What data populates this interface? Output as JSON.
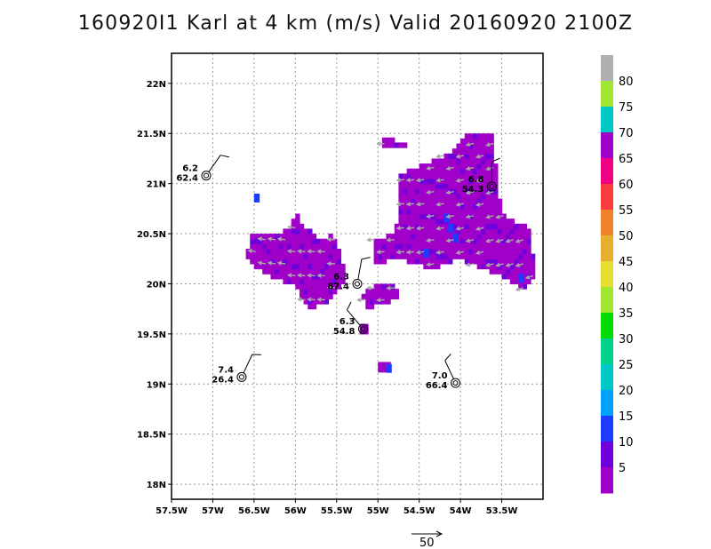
{
  "title": "160920I1 Karl at 4 km (m/s) Valid 20160920 2100Z",
  "map": {
    "lon_min": -57.5,
    "lon_max": -53.0,
    "lat_min": 17.85,
    "lat_max": 22.3,
    "x_ticks": [
      {
        "value": -57.5,
        "label": "57.5W"
      },
      {
        "value": -57.0,
        "label": "57W"
      },
      {
        "value": -56.5,
        "label": "56.5W"
      },
      {
        "value": -56.0,
        "label": "56W"
      },
      {
        "value": -55.5,
        "label": "55.5W"
      },
      {
        "value": -55.0,
        "label": "55W"
      },
      {
        "value": -54.5,
        "label": "54.5W"
      },
      {
        "value": -54.0,
        "label": "54W"
      },
      {
        "value": -53.5,
        "label": "53.5W"
      }
    ],
    "y_ticks": [
      {
        "value": 18.0,
        "label": "18N"
      },
      {
        "value": 18.5,
        "label": "18.5N"
      },
      {
        "value": 19.0,
        "label": "19N"
      },
      {
        "value": 19.5,
        "label": "19.5N"
      },
      {
        "value": 20.0,
        "label": "20N"
      },
      {
        "value": 20.5,
        "label": "20.5N"
      },
      {
        "value": 21.0,
        "label": "21N"
      },
      {
        "value": 21.5,
        "label": "21.5N"
      },
      {
        "value": 22.0,
        "label": "22N"
      }
    ],
    "gridlines": true,
    "background": "#ffffff"
  },
  "colorbar": {
    "labels": [
      "5",
      "10",
      "15",
      "20",
      "25",
      "30",
      "35",
      "40",
      "45",
      "50",
      "55",
      "60",
      "65",
      "70",
      "75",
      "80"
    ],
    "colors": [
      "#a000c8",
      "#6e00dc",
      "#1e3cff",
      "#00a0ff",
      "#00c8c8",
      "#00d28c",
      "#00dc00",
      "#a0e632",
      "#e6dc32",
      "#e6af2d",
      "#f08228",
      "#fa3c3c",
      "#f00082",
      "#a000c8",
      "#00c8c8",
      "#a0e632",
      "#b0b0b0"
    ]
  },
  "reference_vector": {
    "label": "50"
  },
  "observations": [
    {
      "lon": -57.08,
      "lat": 21.08,
      "top": "6.2",
      "bottom": "62.4",
      "barb_dir": 35
    },
    {
      "lon": -55.25,
      "lat": 20.0,
      "top": "6.3",
      "bottom": "87.4",
      "barb_dir": 10
    },
    {
      "lon": -55.18,
      "lat": 19.55,
      "top": "6.3",
      "bottom": "54.8",
      "barb_dir": -40
    },
    {
      "lon": -56.65,
      "lat": 19.07,
      "top": "7.4",
      "bottom": "26.4",
      "barb_dir": 25
    },
    {
      "lon": -54.06,
      "lat": 19.01,
      "top": "7.0",
      "bottom": "66.4",
      "barb_dir": -25
    },
    {
      "lon": -53.62,
      "lat": 20.97,
      "top": "6.8",
      "bottom": "54.3",
      "barb_dir": 0
    }
  ],
  "chart_data": {
    "type": "heatmap",
    "title": "160920I1 Karl at 4 km (m/s) Valid 20160920 2100Z",
    "units": "m/s",
    "x_range": [
      -57.5,
      -53.0
    ],
    "y_range": [
      17.85,
      22.3
    ],
    "grid_cell_deg": 0.05,
    "dominant_value_range_ms": [
      0,
      10
    ],
    "regions": [
      {
        "name": "main",
        "polygon": [
          [
            -54.75,
            21.1
          ],
          [
            -54.4,
            21.2
          ],
          [
            -54.05,
            21.35
          ],
          [
            -53.95,
            21.5
          ],
          [
            -53.6,
            21.5
          ],
          [
            -53.55,
            20.9
          ],
          [
            -53.45,
            20.65
          ],
          [
            -53.15,
            20.55
          ],
          [
            -53.1,
            20.05
          ],
          [
            -53.25,
            19.95
          ],
          [
            -53.45,
            20.05
          ],
          [
            -53.7,
            20.15
          ],
          [
            -54.05,
            20.25
          ],
          [
            -54.35,
            20.15
          ],
          [
            -54.55,
            20.2
          ],
          [
            -54.8,
            20.25
          ],
          [
            -55.05,
            20.2
          ],
          [
            -55.05,
            20.45
          ],
          [
            -54.8,
            20.5
          ],
          [
            -54.75,
            20.75
          ]
        ]
      },
      {
        "name": "west-center",
        "polygon": [
          [
            -56.55,
            20.5
          ],
          [
            -56.25,
            20.5
          ],
          [
            -56.05,
            20.55
          ],
          [
            -56.0,
            20.75
          ],
          [
            -55.95,
            20.6
          ],
          [
            -55.7,
            20.45
          ],
          [
            -55.55,
            20.5
          ],
          [
            -55.45,
            20.3
          ],
          [
            -55.4,
            20.05
          ],
          [
            -55.55,
            19.85
          ],
          [
            -55.85,
            19.75
          ],
          [
            -55.95,
            19.9
          ],
          [
            -56.05,
            20.0
          ],
          [
            -56.25,
            20.05
          ],
          [
            -56.45,
            20.15
          ],
          [
            -56.6,
            20.25
          ]
        ]
      },
      {
        "name": "south-center",
        "polygon": [
          [
            -55.2,
            19.9
          ],
          [
            -55.0,
            20.0
          ],
          [
            -54.8,
            20.0
          ],
          [
            -54.75,
            19.85
          ],
          [
            -54.95,
            19.8
          ],
          [
            -55.15,
            19.75
          ]
        ]
      },
      {
        "name": "north-strip",
        "polygon": [
          [
            -54.95,
            21.45
          ],
          [
            -54.65,
            21.42
          ],
          [
            -54.65,
            21.36
          ],
          [
            -54.95,
            21.38
          ]
        ]
      },
      {
        "name": "small-19.6",
        "polygon": [
          [
            -55.22,
            19.62
          ],
          [
            -55.1,
            19.62
          ],
          [
            -55.1,
            19.5
          ],
          [
            -55.22,
            19.5
          ]
        ]
      },
      {
        "name": "small-19.1",
        "polygon": [
          [
            -55.0,
            19.22
          ],
          [
            -54.85,
            19.22
          ],
          [
            -54.85,
            19.12
          ],
          [
            -55.0,
            19.12
          ]
        ]
      }
    ],
    "high_cells": [
      {
        "lon": -54.2,
        "lat": 20.65,
        "value": 12
      },
      {
        "lon": -54.15,
        "lat": 20.55,
        "value": 12
      },
      {
        "lon": -54.1,
        "lat": 20.45,
        "value": 12
      },
      {
        "lon": -54.45,
        "lat": 20.3,
        "value": 12
      },
      {
        "lon": -56.5,
        "lat": 20.85,
        "value": 12
      },
      {
        "lon": -53.3,
        "lat": 20.05,
        "value": 12
      },
      {
        "lon": -54.9,
        "lat": 19.15,
        "value": 12
      }
    ]
  }
}
